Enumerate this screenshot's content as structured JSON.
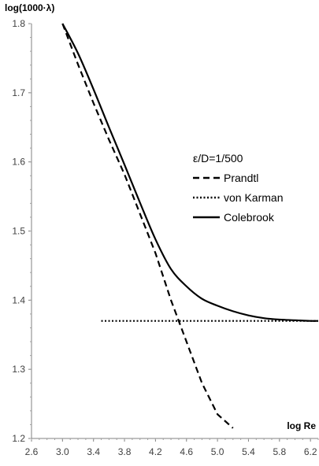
{
  "chart_data": {
    "type": "line",
    "title": "",
    "xlabel": "log Re",
    "ylabel": "log(1000·λ)",
    "xlim": [
      2.6,
      6.3
    ],
    "ylim": [
      1.2,
      1.8
    ],
    "x_ticks": [
      "2.6",
      "3.0",
      "3.4",
      "3.8",
      "4.2",
      "4.6",
      "5.0",
      "5.4",
      "5.8",
      "6.2"
    ],
    "y_ticks": [
      "1.2",
      "1.3",
      "1.4",
      "1.5",
      "1.6",
      "1.7",
      "1.8"
    ],
    "grid": false,
    "legend": {
      "placement": "right-middle",
      "title": "ε/D=1/500"
    },
    "series": [
      {
        "name": "Prandtl",
        "style": "dashed",
        "color": "#000000",
        "x": [
          3.0,
          3.2,
          3.4,
          3.6,
          3.8,
          4.0,
          4.2,
          4.4,
          4.6,
          4.8,
          5.0,
          5.2
        ],
        "y": [
          1.8,
          1.741,
          1.685,
          1.632,
          1.582,
          1.525,
          1.468,
          1.4,
          1.34,
          1.28,
          1.235,
          1.215
        ]
      },
      {
        "name": "von Karman",
        "style": "dotted",
        "color": "#000000",
        "x": [
          3.5,
          6.3
        ],
        "y": [
          1.37,
          1.37
        ]
      },
      {
        "name": "Colebrook",
        "style": "solid",
        "color": "#000000",
        "x": [
          3.0,
          3.2,
          3.4,
          3.6,
          3.8,
          4.0,
          4.2,
          4.4,
          4.6,
          4.8,
          5.0,
          5.2,
          5.4,
          5.6,
          5.8,
          6.0,
          6.2,
          6.3
        ],
        "y": [
          1.8,
          1.757,
          1.705,
          1.65,
          1.596,
          1.541,
          1.488,
          1.445,
          1.42,
          1.402,
          1.392,
          1.384,
          1.378,
          1.374,
          1.372,
          1.371,
          1.37,
          1.37
        ]
      }
    ]
  }
}
